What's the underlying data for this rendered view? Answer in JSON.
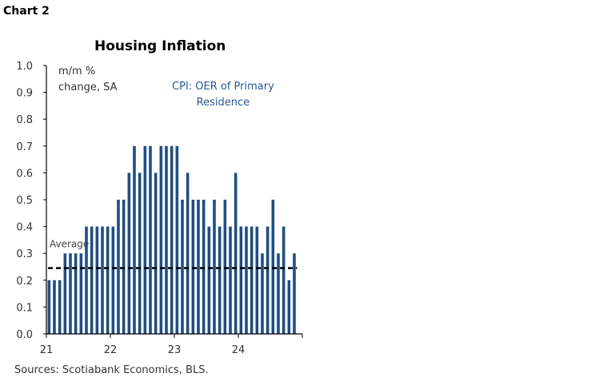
{
  "label": "Chart 2",
  "chart_data": {
    "type": "bar",
    "title": "Housing Inflation",
    "ylabel": "m/m %\nchange, SA",
    "series": [
      {
        "name": "CPI: OER of Primary\nResidence",
        "values": [
          0.2,
          0.2,
          0.2,
          0.3,
          0.3,
          0.3,
          0.3,
          0.4,
          0.4,
          0.4,
          0.4,
          0.4,
          0.4,
          0.5,
          0.5,
          0.6,
          0.7,
          0.6,
          0.7,
          0.7,
          0.6,
          0.7,
          0.7,
          0.7,
          0.7,
          0.5,
          0.6,
          0.5,
          0.5,
          0.5,
          0.4,
          0.5,
          0.4,
          0.5,
          0.4,
          0.6,
          0.4,
          0.4,
          0.4,
          0.4,
          0.3,
          0.4,
          0.5,
          0.3,
          0.4,
          0.2,
          0.3
        ]
      }
    ],
    "x_start": "2021-01",
    "frequency": "monthly",
    "xticks": [
      "21",
      "22",
      "23",
      "24"
    ],
    "yticks": [
      "0.0",
      "0.1",
      "0.2",
      "0.3",
      "0.4",
      "0.5",
      "0.6",
      "0.7",
      "0.8",
      "0.9",
      "1.0"
    ],
    "ylim": [
      0,
      1.0
    ],
    "average": {
      "label": "Average",
      "value": 0.245
    },
    "bar_color": "#1f4e85",
    "grid": false,
    "source": "Sources: Scotiabank Economics, BLS."
  }
}
